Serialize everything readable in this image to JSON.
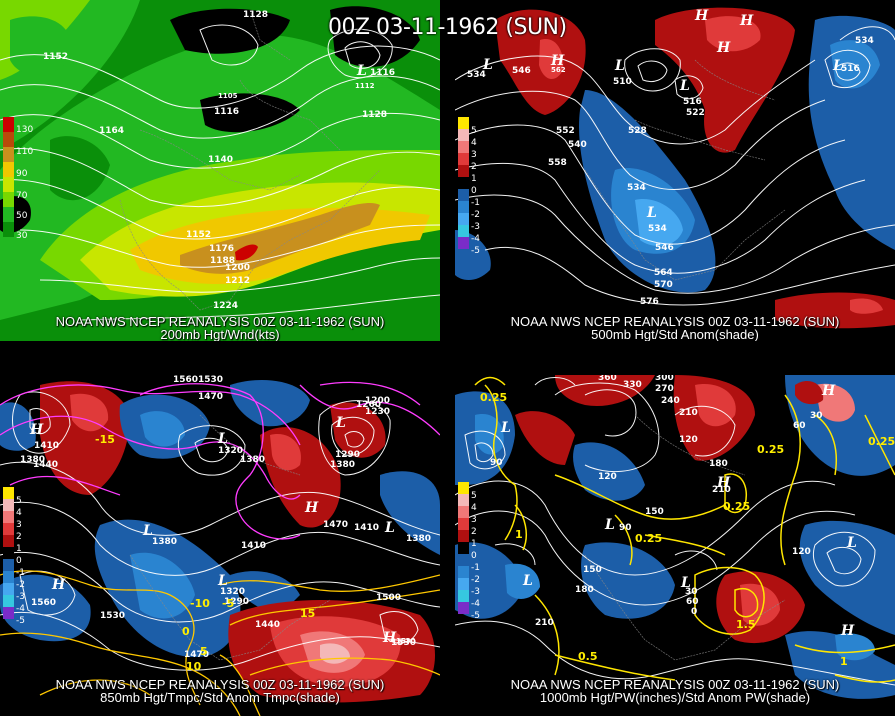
{
  "title": "00Z 03-11-1962 (SUN)",
  "colors": {
    "wind_scale": [
      "#0a8f0a",
      "#22b822",
      "#78d800",
      "#c8e600",
      "#f0c800",
      "#c8901e",
      "#b84a0a",
      "#cc0000"
    ],
    "anom_pos": [
      "#7a0000",
      "#b01010",
      "#e03a3a",
      "#f07878",
      "#f4b8b8"
    ],
    "anom_neg": [
      "#1c5ea8",
      "#2a84d0",
      "#46a8f0",
      "#36c8e0",
      "#7a2cc8"
    ],
    "contour": "#ffffff",
    "temp_contour": "#ff3cff",
    "pw_contour": "#ffe600"
  },
  "panels": [
    {
      "id": "p200",
      "footer1": "NOAA NWS NCEP REANALYSIS 00Z 03-11-1962 (SUN)",
      "footer2": "200mb Hgt/Wnd(kts)",
      "legend": [
        "130",
        "110",
        "90",
        "70",
        "50",
        "30"
      ],
      "labels": [
        "1152",
        "1164",
        "1116",
        "1105",
        "1128",
        "1140",
        "1152",
        "1176",
        "1188",
        "1200",
        "1212",
        "1224",
        "1128",
        "1116",
        "1112"
      ],
      "highs": [],
      "lows": [
        "L"
      ]
    },
    {
      "id": "p500",
      "footer1": "NOAA NWS NCEP REANALYSIS 00Z 03-11-1962 (SUN)",
      "footer2": "500mb Hgt/Std Anom(shade)",
      "legend": [
        "5",
        "4",
        "3",
        "2",
        "1",
        "0",
        "-1",
        "-2",
        "-3",
        "-4",
        "-5"
      ],
      "labels": [
        "534",
        "546",
        "552",
        "540",
        "558",
        "528",
        "534",
        "534",
        "546",
        "564",
        "570",
        "576",
        "516",
        "510",
        "522",
        "534",
        "516",
        "562"
      ],
      "highs": [
        "H",
        "H",
        "H",
        "H"
      ],
      "lows": [
        "L",
        "L",
        "L",
        "L",
        "L"
      ]
    },
    {
      "id": "p850",
      "footer1": "NOAA NWS NCEP REANALYSIS 00Z 03-11-1962 (SUN)",
      "footer2": "850mb Hgt/Tmpc/Std Anom Tmpc(shade)",
      "legend": [
        "5",
        "4",
        "3",
        "2",
        "1",
        "0",
        "-1",
        "-2",
        "-3",
        "-4",
        "-5"
      ],
      "labels": [
        "1560",
        "1530",
        "1470",
        "1410",
        "1440",
        "1380",
        "1380",
        "1320",
        "1380",
        "1410",
        "1260",
        "1200",
        "1230",
        "1290",
        "1380",
        "1470",
        "1410",
        "1380",
        "1500",
        "1530",
        "1560",
        "1530",
        "1470",
        "1440",
        "1530",
        "1320",
        "1290"
      ],
      "highs": [
        "H",
        "H",
        "H",
        "H"
      ],
      "lows": [
        "L",
        "L",
        "L",
        "L",
        "L"
      ],
      "temps": [
        "-15",
        "-10",
        "-5",
        "0",
        "5",
        "10",
        "15"
      ]
    },
    {
      "id": "p1000",
      "footer1": "NOAA NWS NCEP REANALYSIS 00Z 03-11-1962 (SUN)",
      "footer2": "1000mb Hgt/PW(inches)/Std Anom PW(shade)",
      "legend": [
        "5",
        "4",
        "3",
        "2",
        "1",
        "0",
        "-1",
        "-2",
        "-3",
        "-4",
        "-5"
      ],
      "labels": [
        "360",
        "330",
        "300",
        "270",
        "240",
        "210",
        "120",
        "180",
        "210",
        "150",
        "120",
        "90",
        "180",
        "150",
        "210",
        "60",
        "30",
        "0",
        "120",
        "90",
        "30",
        "60"
      ],
      "highs": [
        "H",
        "H",
        "H"
      ],
      "lows": [
        "L",
        "L",
        "L",
        "L",
        "L"
      ],
      "pw": [
        "0.25",
        "0.25",
        "0.25",
        "0.25",
        "0.25",
        "0.5",
        "1",
        "1.5",
        "1"
      ]
    }
  ]
}
